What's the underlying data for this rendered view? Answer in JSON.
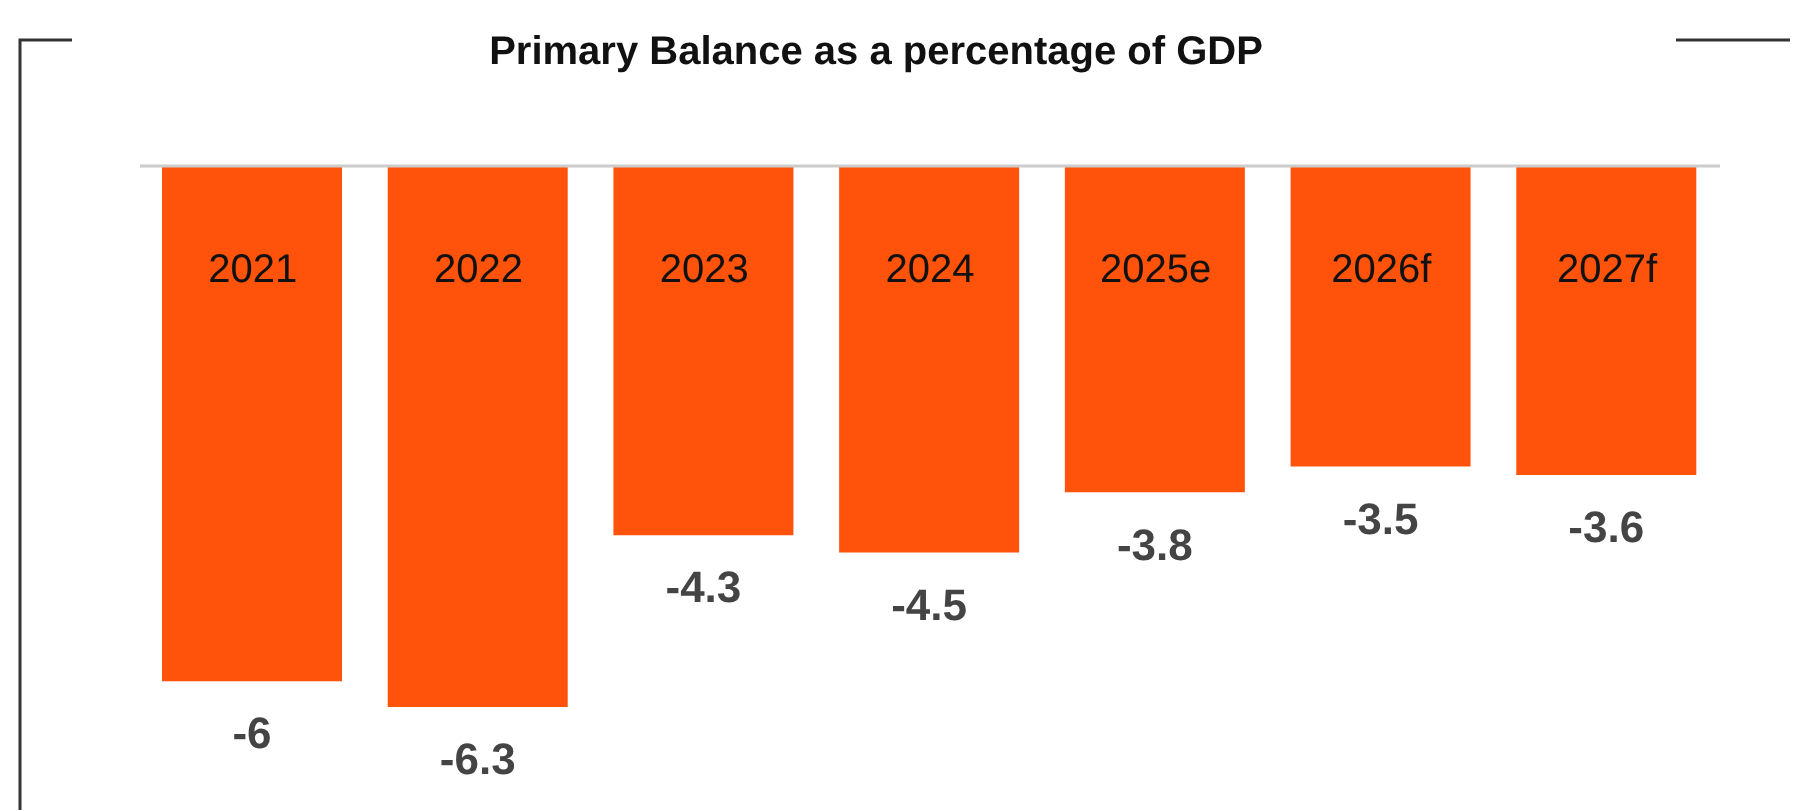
{
  "chart_data": {
    "type": "bar",
    "title": "Primary Balance as a percentage of GDP",
    "categories": [
      "2021",
      "2022",
      "2023",
      "2024",
      "2025e",
      "2026f",
      "2027f"
    ],
    "values": [
      -6,
      -6.3,
      -4.3,
      -4.5,
      -3.8,
      -3.5,
      -3.6
    ],
    "color": "#ff520a",
    "ylim": [
      -7.5,
      0
    ],
    "data_labels": true,
    "tick_labels": "x"
  }
}
